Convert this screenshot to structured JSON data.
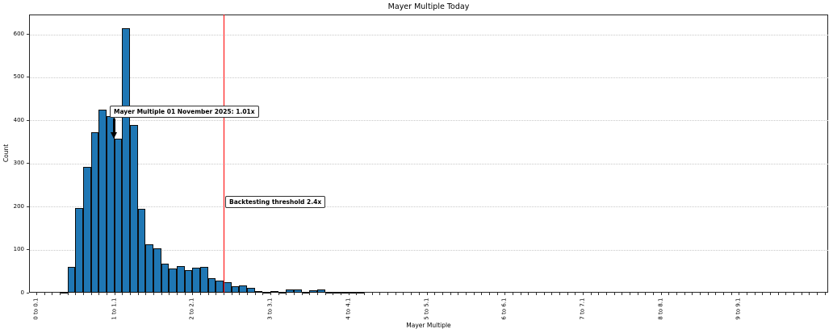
{
  "chart_data": {
    "type": "bar",
    "subtype": "histogram",
    "title": "Mayer Multiple Today",
    "xlabel": "Mayer Multiple",
    "ylabel": "Count",
    "grid": "horizontal-dotted",
    "legend": "none",
    "ylim": [
      0,
      646
    ],
    "xlim": [
      -0.09,
      10.15
    ],
    "yticks": [
      "0",
      "100",
      "200",
      "300",
      "400",
      "500",
      "600"
    ],
    "ytick_values": [
      0,
      100,
      200,
      300,
      400,
      500,
      600
    ],
    "xtick_labels": [
      "0 to 0.1",
      "1 to 1.1",
      "2 to 2.1",
      "3 to 3.1",
      "4 to 4.1",
      "5 to 5.1",
      "6 to 6.1",
      "7 to 7.1",
      "8 to 8.1",
      "9 to 9.1"
    ],
    "xtick_values": [
      0,
      1,
      2,
      3,
      4,
      5,
      6,
      7,
      8,
      9
    ],
    "minor_tick_step": 0.1,
    "bin_start": 0.3,
    "bin_width": 0.1,
    "counts": [
      2,
      60,
      197,
      293,
      372,
      425,
      410,
      357,
      615,
      390,
      195,
      113,
      103,
      68,
      57,
      62,
      53,
      58,
      60,
      33,
      28,
      25,
      15,
      16,
      11,
      4,
      1,
      3,
      2,
      7,
      7,
      1,
      5,
      8,
      2,
      2,
      2,
      1,
      2
    ],
    "bar_color": "#1f77b4",
    "bar_edge_color": "#0d0d0d",
    "threshold_line": {
      "x": 2.4,
      "color": "#ff0000"
    },
    "annotations": [
      {
        "text": "Mayer Multiple 01 November 2025: 1.01x",
        "x": 1.01,
        "y": 357,
        "arrow": "down"
      },
      {
        "text": "Backtesting threshold 2.4x",
        "x": 2.4,
        "arrow": "none"
      }
    ]
  }
}
